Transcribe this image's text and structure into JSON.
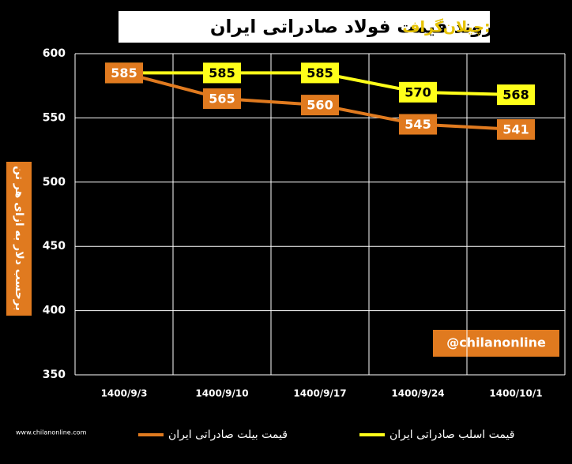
{
  "chart_data": {
    "type": "line",
    "brand": "چیلان‌گراف:",
    "title": "روند قیمت فولاد صادراتی ایران",
    "y_label": "برحسب دلار به ازای هر تن",
    "watermark": "@chilanonline",
    "website": "www.chilanonline.com",
    "categories": [
      "1400/9/3",
      "1400/9/10",
      "1400/9/17",
      "1400/9/24",
      "1400/10/1"
    ],
    "series": [
      {
        "name": "قیمت اسلب صادراتی ایران",
        "color": "#ffff1a",
        "values": [
          585,
          585,
          585,
          570,
          568
        ]
      },
      {
        "name": "قیمت بیلت صادراتی ایران",
        "color": "#e07a1f",
        "values": [
          585,
          565,
          560,
          545,
          541
        ]
      }
    ],
    "ylim": [
      350,
      600
    ],
    "yticks": [
      350,
      400,
      450,
      500,
      550,
      600
    ],
    "grid": true
  }
}
